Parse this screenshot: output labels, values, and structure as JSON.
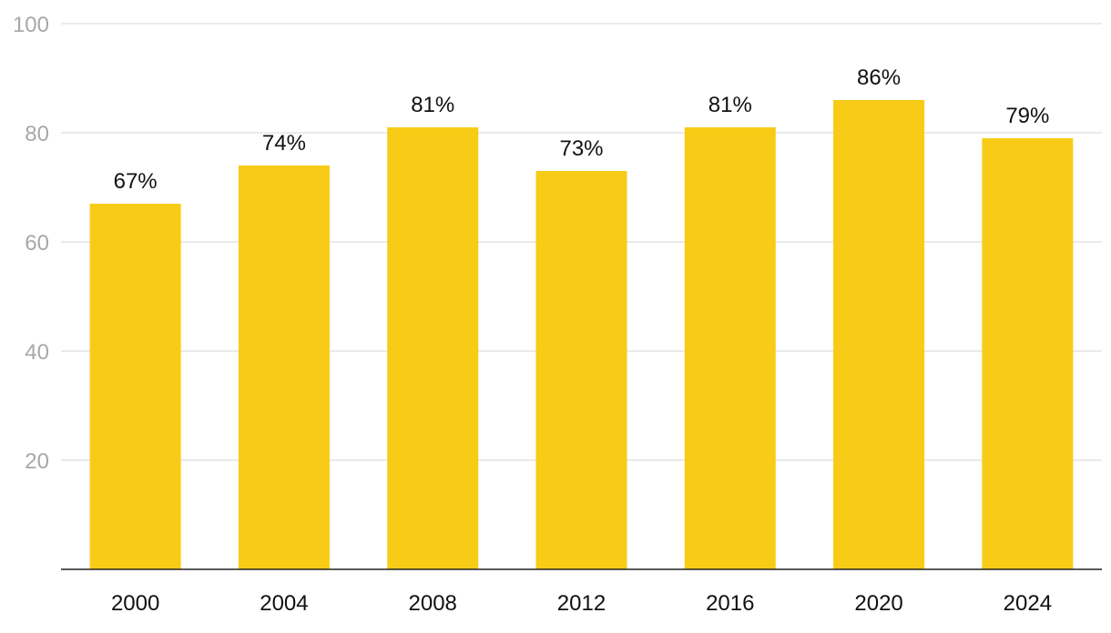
{
  "chart_data": {
    "type": "bar",
    "categories": [
      "2000",
      "2004",
      "2008",
      "2012",
      "2016",
      "2020",
      "2024"
    ],
    "values": [
      67,
      74,
      81,
      73,
      81,
      86,
      79
    ],
    "value_labels": [
      "67%",
      "74%",
      "81%",
      "73%",
      "81%",
      "86%",
      "79%"
    ],
    "title": "",
    "xlabel": "",
    "ylabel": "",
    "ylim": [
      0,
      100
    ],
    "yticks": [
      "20",
      "40",
      "60",
      "80",
      "100"
    ],
    "grid": true,
    "legend": "none",
    "bar_color": "#F8CB17",
    "grid_color": "#e3e3e3",
    "axis_color": "#222222"
  }
}
